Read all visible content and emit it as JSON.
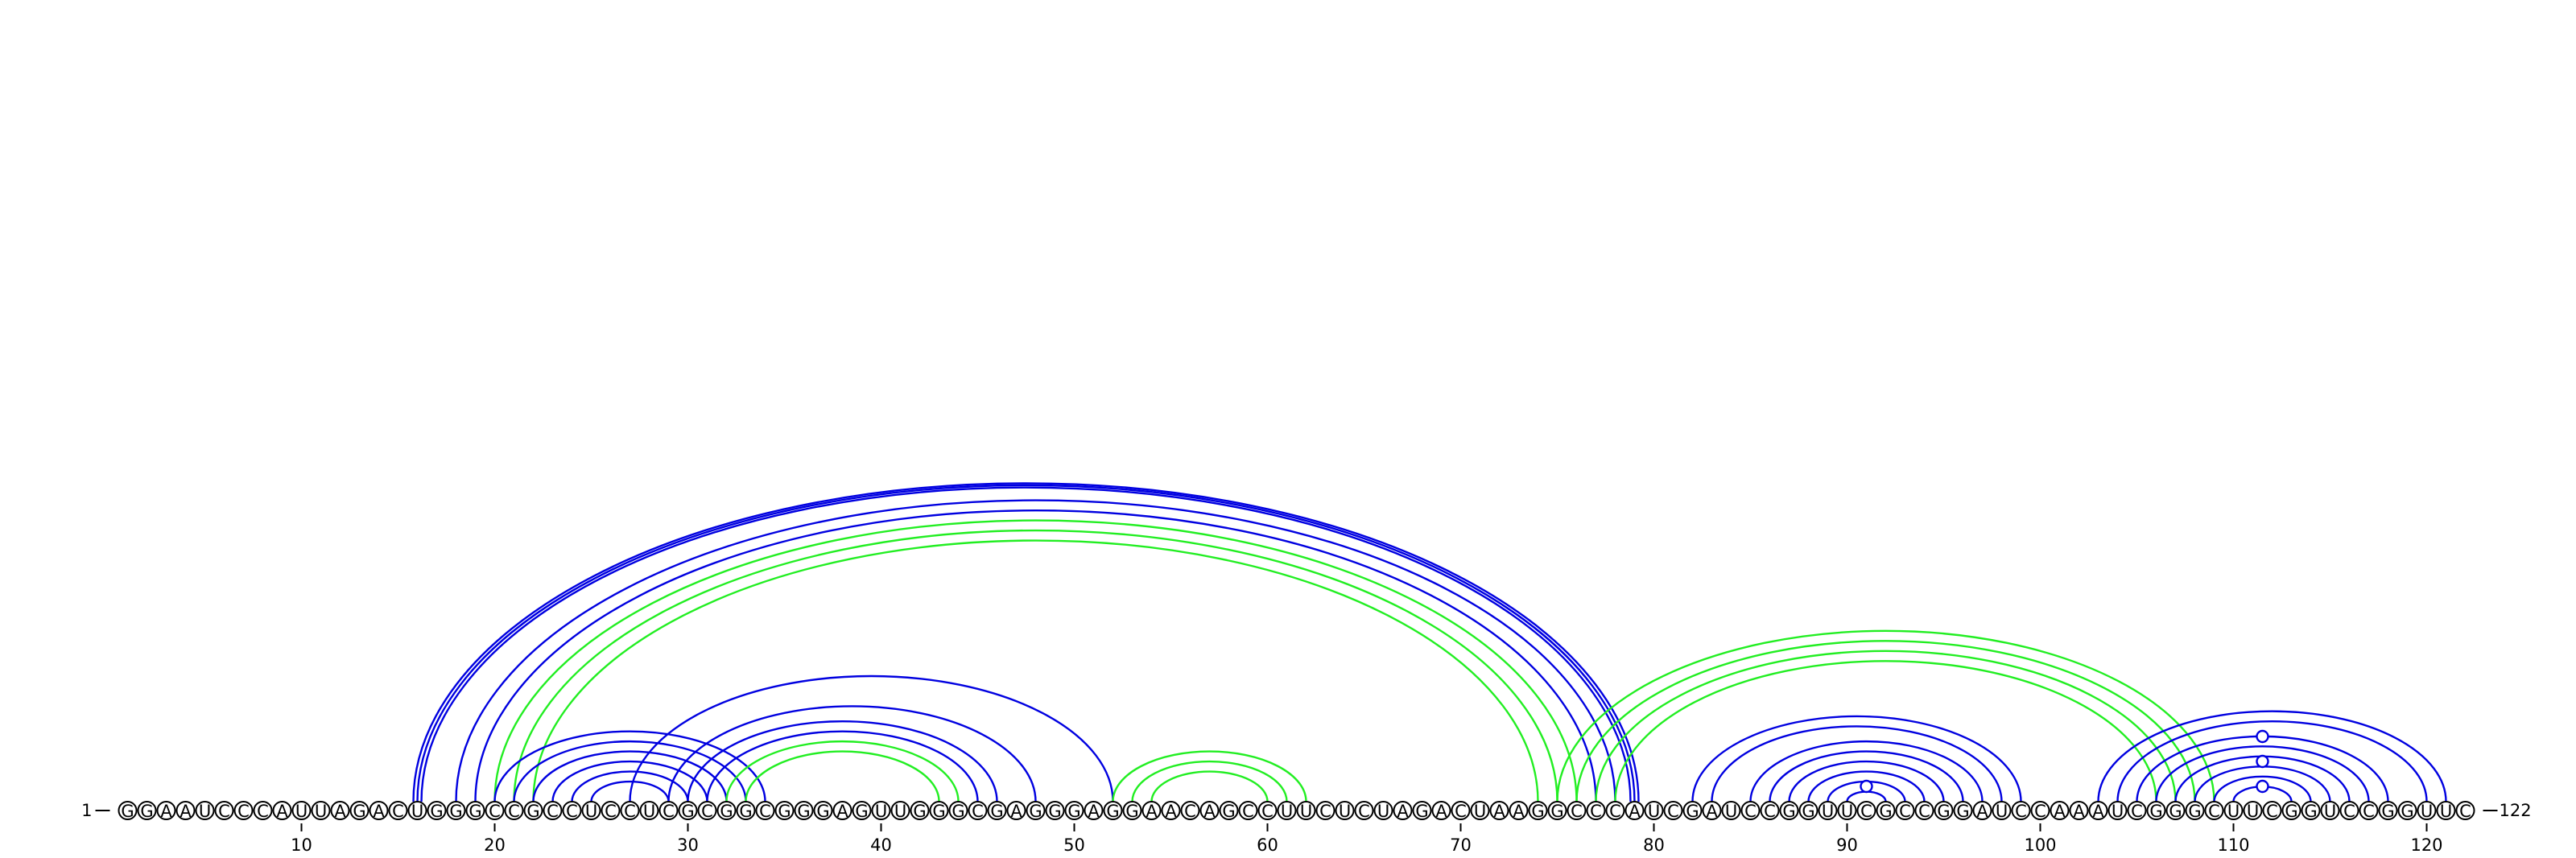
{
  "diagram": {
    "sequence": "GGAAUCCCAUUAGACUGGGCCGCCUCCUCGCGGCGGGAGUUGGGCGAGGGAGGAACAGCCUUCUCUAGACUAAGGCCCAUCGAUCCGGUUCGCCGGAUCCAAAUCGGGCUUCGGUCCGGUUC",
    "start_label": "1",
    "end_label": "122",
    "tick_positions": [
      10,
      20,
      30,
      40,
      50,
      60,
      70,
      80,
      90,
      100,
      110,
      120
    ],
    "tick_labels": [
      "10",
      "20",
      "30",
      "40",
      "50",
      "60",
      "70",
      "80",
      "90",
      "100",
      "110",
      "120"
    ],
    "colors": {
      "blue": "#0000e0",
      "green": "#22ee22"
    },
    "arc_groups": [
      {
        "color": "blue",
        "i": 16,
        "j": 79,
        "count": 3
      },
      {
        "color": "blue",
        "i": 18,
        "j": 78,
        "count": 1
      },
      {
        "color": "blue",
        "i": 19,
        "j": 77,
        "count": 1
      },
      {
        "color": "green",
        "i": 20,
        "j": 76,
        "count": 1
      },
      {
        "color": "green",
        "i": 21,
        "j": 75,
        "count": 1
      },
      {
        "color": "green",
        "i": 22,
        "j": 74,
        "count": 1
      },
      {
        "color": "blue",
        "i": 20,
        "j": 34,
        "count": 1
      },
      {
        "color": "blue",
        "i": 21,
        "j": 33,
        "count": 1
      },
      {
        "color": "blue",
        "i": 22,
        "j": 32,
        "count": 1
      },
      {
        "color": "blue",
        "i": 23,
        "j": 31,
        "count": 1
      },
      {
        "color": "blue",
        "i": 24,
        "j": 30,
        "count": 1
      },
      {
        "color": "blue",
        "i": 25,
        "j": 29,
        "count": 1
      },
      {
        "color": "blue",
        "i": 27,
        "j": 52,
        "count": 1
      },
      {
        "color": "blue",
        "i": 29,
        "j": 48,
        "count": 1
      },
      {
        "color": "blue",
        "i": 30,
        "j": 46,
        "count": 1
      },
      {
        "color": "blue",
        "i": 31,
        "j": 45,
        "count": 1
      },
      {
        "color": "green",
        "i": 32,
        "j": 44,
        "count": 1
      },
      {
        "color": "green",
        "i": 33,
        "j": 43,
        "count": 1
      },
      {
        "color": "green",
        "i": 52,
        "j": 62,
        "count": 1
      },
      {
        "color": "green",
        "i": 53,
        "j": 61,
        "count": 1
      },
      {
        "color": "green",
        "i": 54,
        "j": 60,
        "count": 1
      },
      {
        "color": "green",
        "i": 75,
        "j": 109,
        "count": 1
      },
      {
        "color": "green",
        "i": 76,
        "j": 108,
        "count": 1
      },
      {
        "color": "green",
        "i": 77,
        "j": 107,
        "count": 1
      },
      {
        "color": "green",
        "i": 78,
        "j": 106,
        "count": 1
      },
      {
        "color": "blue",
        "i": 82,
        "j": 99,
        "count": 1
      },
      {
        "color": "blue",
        "i": 83,
        "j": 98,
        "count": 1
      },
      {
        "color": "blue",
        "i": 85,
        "j": 97,
        "count": 1
      },
      {
        "color": "blue",
        "i": 86,
        "j": 96,
        "count": 1
      },
      {
        "color": "blue",
        "i": 87,
        "j": 95,
        "count": 1
      },
      {
        "color": "blue",
        "i": 88,
        "j": 94,
        "count": 1
      },
      {
        "color": "blue",
        "i": 89,
        "j": 93,
        "count": 1
      },
      {
        "color": "blue",
        "i": 90,
        "j": 92,
        "count": 1
      },
      {
        "color": "blue",
        "i": 103,
        "j": 121,
        "count": 1
      },
      {
        "color": "blue",
        "i": 104,
        "j": 120,
        "count": 1
      },
      {
        "color": "blue",
        "i": 105,
        "j": 118,
        "count": 1
      },
      {
        "color": "blue",
        "i": 106,
        "j": 117,
        "count": 1
      },
      {
        "color": "blue",
        "i": 107,
        "j": 116,
        "count": 1
      },
      {
        "color": "blue",
        "i": 108,
        "j": 115,
        "count": 1
      },
      {
        "color": "blue",
        "i": 109,
        "j": 114,
        "count": 1
      },
      {
        "color": "blue",
        "i": 110,
        "j": 113,
        "count": 1
      }
    ],
    "markers": [
      {
        "pos": 91,
        "level": 0
      },
      {
        "pos": 111.5,
        "level": 0
      },
      {
        "pos": 111.5,
        "level": 1
      },
      {
        "pos": 111.5,
        "level": 2
      }
    ]
  }
}
